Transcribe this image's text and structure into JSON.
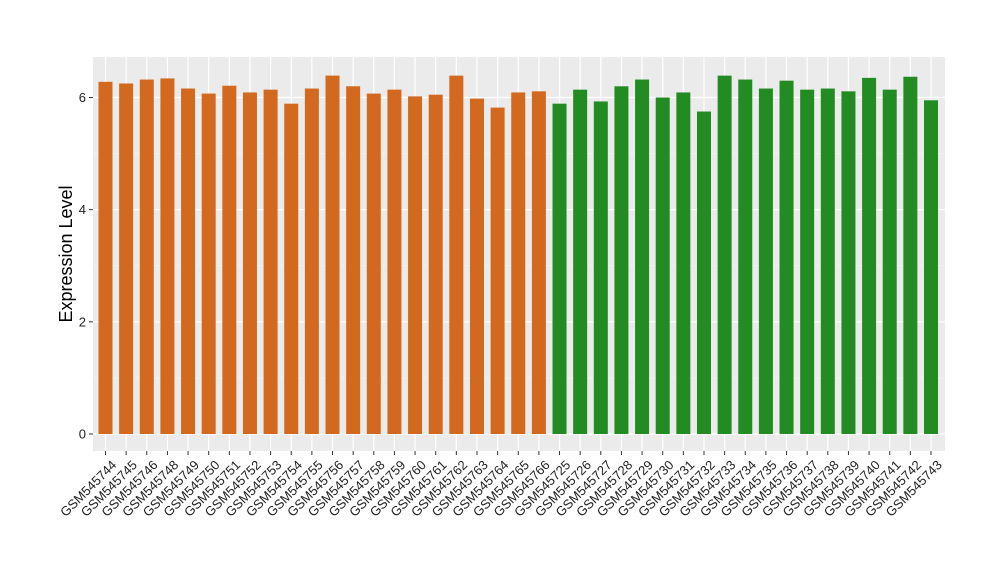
{
  "chart_data": {
    "type": "bar",
    "xlabel": "",
    "ylabel": "Expression Level",
    "ylim": [
      0,
      6.6
    ],
    "yticks": [
      0,
      2,
      4,
      6
    ],
    "grid": true,
    "background": "#ebebeb",
    "colors": {
      "group1": "#d2691e",
      "group2": "#228b22"
    },
    "categories": [
      "GSM545744",
      "GSM545745",
      "GSM545746",
      "GSM545748",
      "GSM545749",
      "GSM545750",
      "GSM545751",
      "GSM545752",
      "GSM545753",
      "GSM545754",
      "GSM545755",
      "GSM545756",
      "GSM545757",
      "GSM545758",
      "GSM545759",
      "GSM545760",
      "GSM545761",
      "GSM545762",
      "GSM545763",
      "GSM545764",
      "GSM545765",
      "GSM545766",
      "GSM545725",
      "GSM545726",
      "GSM545727",
      "GSM545728",
      "GSM545729",
      "GSM545730",
      "GSM545731",
      "GSM545732",
      "GSM545733",
      "GSM545734",
      "GSM545735",
      "GSM545736",
      "GSM545737",
      "GSM545738",
      "GSM545739",
      "GSM545740",
      "GSM545741",
      "GSM545742",
      "GSM545743"
    ],
    "values": [
      6.28,
      6.25,
      6.32,
      6.34,
      6.16,
      6.07,
      6.21,
      6.09,
      6.14,
      5.89,
      6.16,
      6.39,
      6.2,
      6.07,
      6.14,
      6.02,
      6.05,
      6.39,
      5.98,
      5.82,
      6.09,
      6.11,
      5.89,
      6.14,
      5.93,
      6.2,
      6.32,
      6.0,
      6.09,
      5.75,
      6.39,
      6.32,
      6.16,
      6.3,
      6.14,
      6.16,
      6.11,
      6.35,
      6.14,
      6.37,
      5.95
    ],
    "groups": [
      1,
      1,
      1,
      1,
      1,
      1,
      1,
      1,
      1,
      1,
      1,
      1,
      1,
      1,
      1,
      1,
      1,
      1,
      1,
      1,
      1,
      1,
      2,
      2,
      2,
      2,
      2,
      2,
      2,
      2,
      2,
      2,
      2,
      2,
      2,
      2,
      2,
      2,
      2,
      2,
      2
    ]
  }
}
